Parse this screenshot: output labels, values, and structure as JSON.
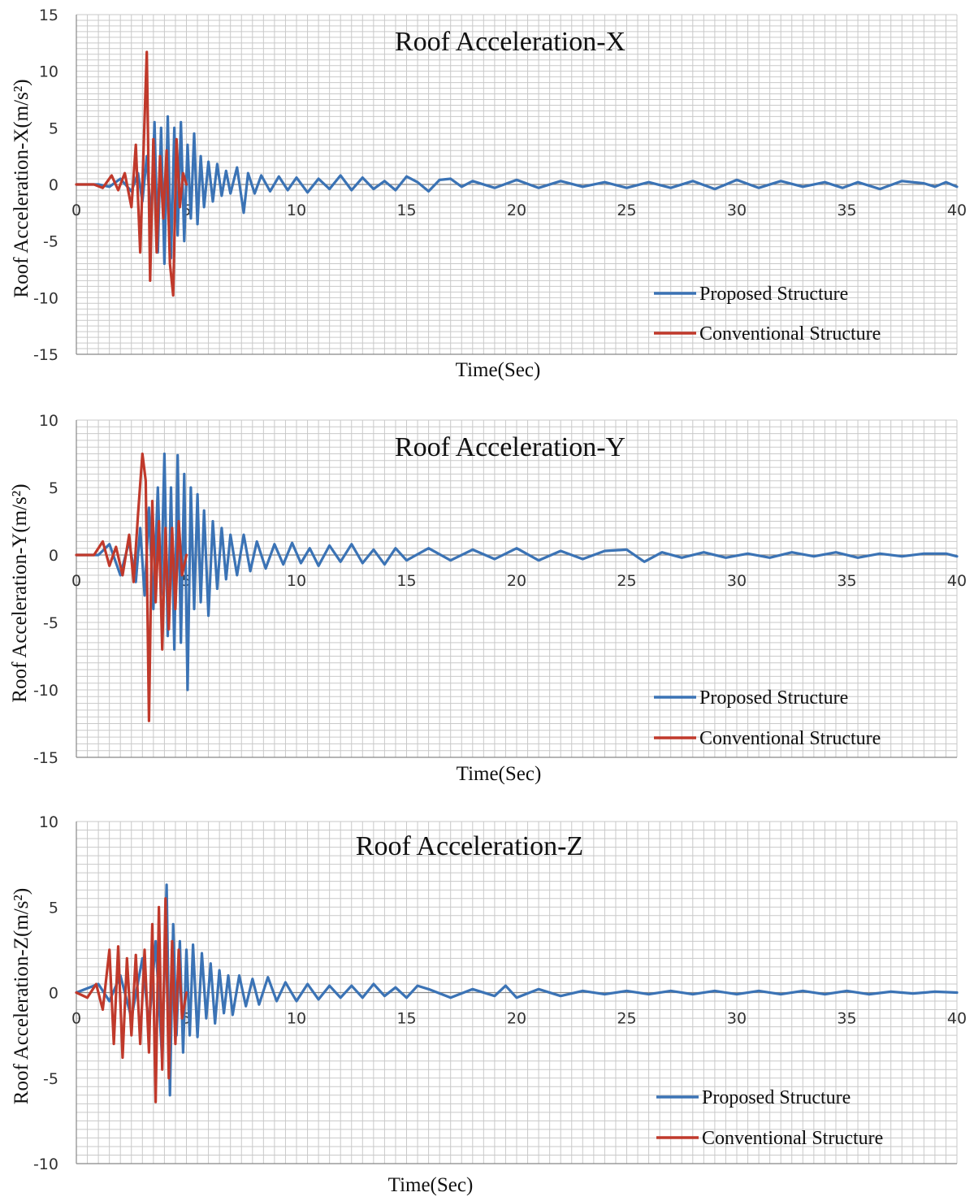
{
  "chart_data": [
    {
      "type": "line",
      "title": "Roof Acceleration-X",
      "xlabel": "Time(Sec)",
      "ylabel": "Roof Acceleration-X(m/s²)",
      "xlim": [
        0,
        40
      ],
      "ylim": [
        -15,
        15
      ],
      "x_ticks": [
        0,
        5,
        10,
        15,
        20,
        25,
        30,
        35,
        40
      ],
      "y_ticks": [
        15,
        10,
        5,
        0,
        -5,
        -10,
        -15
      ],
      "grid": true,
      "legend_position": "bottom-right",
      "series": [
        {
          "name": "Proposed Structure",
          "color": "#3b73b5",
          "x": [
            0,
            1,
            1.5,
            2,
            2.5,
            2.8,
            3.0,
            3.2,
            3.4,
            3.55,
            3.7,
            3.85,
            4.0,
            4.15,
            4.3,
            4.45,
            4.6,
            4.75,
            4.9,
            5.05,
            5.2,
            5.35,
            5.5,
            5.65,
            5.8,
            6.0,
            6.2,
            6.4,
            6.6,
            6.8,
            7.0,
            7.3,
            7.6,
            7.8,
            8.1,
            8.4,
            8.8,
            9.2,
            9.6,
            10.0,
            10.5,
            11.0,
            11.5,
            12.0,
            12.5,
            13.0,
            13.5,
            14.0,
            14.5,
            15.0,
            15.5,
            16.0,
            16.5,
            17.0,
            17.5,
            18.0,
            19.0,
            20.0,
            21.0,
            22.0,
            23.0,
            24.0,
            25.0,
            26.0,
            27.0,
            28.0,
            29.0,
            30.0,
            31.0,
            32.0,
            33.0,
            34.0,
            34.8,
            35.5,
            36.5,
            37.5,
            38.5,
            39.0,
            39.5,
            40.0
          ],
          "values": [
            0,
            0,
            -0.2,
            0.5,
            -0.6,
            1.0,
            -1.5,
            2.5,
            -3.5,
            5.5,
            -6.0,
            5.0,
            -7.0,
            6.0,
            -6.5,
            5.0,
            -4.5,
            5.5,
            -5.0,
            3.5,
            -3.0,
            4.5,
            -3.5,
            2.5,
            -2.0,
            2.0,
            -1.5,
            1.8,
            -1.0,
            1.2,
            -0.8,
            1.5,
            -2.5,
            1.0,
            -0.8,
            0.8,
            -0.6,
            0.7,
            -0.5,
            0.6,
            -0.7,
            0.5,
            -0.4,
            0.8,
            -0.5,
            0.6,
            -0.4,
            0.3,
            -0.5,
            0.7,
            0.2,
            -0.6,
            0.4,
            0.5,
            -0.2,
            0.3,
            -0.3,
            0.4,
            -0.3,
            0.3,
            -0.2,
            0.2,
            -0.3,
            0.2,
            -0.3,
            0.3,
            -0.4,
            0.4,
            -0.3,
            0.3,
            -0.2,
            0.2,
            -0.3,
            0.2,
            -0.4,
            0.3,
            0.1,
            -0.2,
            0.2,
            -0.2
          ]
        },
        {
          "name": "Conventional Structure",
          "color": "#c0392b",
          "x": [
            0,
            0.8,
            1.2,
            1.6,
            1.9,
            2.2,
            2.5,
            2.7,
            2.9,
            3.05,
            3.2,
            3.35,
            3.5,
            3.65,
            3.8,
            3.95,
            4.1,
            4.25,
            4.4,
            4.55,
            4.7,
            4.85,
            5.0
          ],
          "values": [
            0,
            0,
            -0.3,
            0.8,
            -0.5,
            1.0,
            -2.0,
            3.5,
            -6.0,
            3.0,
            11.7,
            -8.5,
            4.0,
            -6.0,
            2.5,
            -3.0,
            3.0,
            -7.0,
            -9.8,
            4.0,
            -2.0,
            1.0,
            0
          ]
        }
      ]
    },
    {
      "type": "line",
      "title": "Roof Acceleration-Y",
      "xlabel": "Time(Sec)",
      "ylabel": "Roof Acceleration-Y(m/s²)",
      "xlim": [
        0,
        40
      ],
      "ylim": [
        -15,
        10
      ],
      "x_ticks": [
        0,
        5,
        10,
        15,
        20,
        25,
        30,
        35,
        40
      ],
      "y_ticks": [
        10,
        5,
        0,
        -5,
        -10,
        -15
      ],
      "grid": true,
      "legend_position": "bottom-right",
      "series": [
        {
          "name": "Proposed Structure",
          "color": "#3b73b5",
          "x": [
            0,
            1,
            1.5,
            2,
            2.4,
            2.7,
            2.9,
            3.1,
            3.3,
            3.5,
            3.7,
            3.85,
            4.0,
            4.15,
            4.3,
            4.45,
            4.6,
            4.75,
            4.9,
            5.05,
            5.2,
            5.35,
            5.5,
            5.65,
            5.8,
            6.0,
            6.2,
            6.4,
            6.6,
            6.8,
            7.0,
            7.3,
            7.6,
            7.9,
            8.2,
            8.6,
            9.0,
            9.4,
            9.8,
            10.2,
            10.6,
            11.0,
            11.5,
            12.0,
            12.5,
            13.0,
            13.5,
            14.0,
            14.5,
            15.0,
            16.0,
            17.0,
            18.0,
            19.0,
            20.0,
            21.0,
            22.0,
            23.0,
            24.0,
            25.0,
            25.8,
            26.6,
            27.5,
            28.5,
            29.5,
            30.5,
            31.5,
            32.5,
            33.5,
            34.5,
            35.5,
            36.5,
            37.5,
            38.5,
            39.5,
            40.0
          ],
          "values": [
            0,
            0,
            0.8,
            -1.5,
            1.0,
            -2.0,
            2.0,
            -3.0,
            3.5,
            -4.0,
            5.0,
            -3.0,
            7.5,
            -6.0,
            5.0,
            -7.0,
            7.4,
            -6.5,
            6.0,
            -10.0,
            5.0,
            -4.0,
            4.5,
            -3.5,
            3.3,
            -4.5,
            2.5,
            -2.5,
            2.0,
            -1.8,
            1.5,
            -1.5,
            1.5,
            -1.2,
            1.0,
            -1.0,
            0.8,
            -0.7,
            0.9,
            -0.6,
            0.5,
            -0.8,
            0.7,
            -0.5,
            0.8,
            -0.6,
            0.4,
            -0.7,
            0.5,
            -0.4,
            0.5,
            -0.4,
            0.4,
            -0.3,
            0.5,
            -0.4,
            0.3,
            -0.3,
            0.3,
            0.4,
            -0.5,
            0.2,
            -0.2,
            0.2,
            -0.2,
            0.1,
            -0.2,
            0.2,
            -0.1,
            0.2,
            -0.2,
            0.1,
            -0.1,
            0.1,
            0.1,
            -0.1
          ]
        },
        {
          "name": "Conventional Structure",
          "color": "#c0392b",
          "x": [
            0,
            0.8,
            1.2,
            1.5,
            1.8,
            2.1,
            2.4,
            2.6,
            2.8,
            3.0,
            3.15,
            3.3,
            3.45,
            3.6,
            3.75,
            3.9,
            4.05,
            4.2,
            4.35,
            4.5,
            4.65,
            4.8,
            5.0
          ],
          "values": [
            0,
            0,
            1.0,
            -0.8,
            0.6,
            -1.5,
            1.5,
            -2.0,
            3.0,
            7.5,
            5.5,
            -12.3,
            4.0,
            -3.5,
            2.5,
            -7.0,
            2.0,
            -5.5,
            2.0,
            -4.0,
            2.5,
            -1.5,
            0
          ]
        }
      ]
    },
    {
      "type": "line",
      "title": "Roof Acceleration-Z",
      "xlabel": "Time(Sec)",
      "ylabel": "Roof Acceleration-Z(m/s²)",
      "xlim": [
        0,
        40
      ],
      "ylim": [
        -10,
        10
      ],
      "x_ticks": [
        0,
        5,
        10,
        15,
        20,
        25,
        30,
        35,
        40
      ],
      "y_ticks": [
        10,
        5,
        0,
        -5,
        -10
      ],
      "grid": true,
      "legend_position": "bottom-right",
      "series": [
        {
          "name": "Proposed Structure",
          "color": "#3b73b5",
          "x": [
            0,
            1,
            1.5,
            2,
            2.5,
            3.0,
            3.3,
            3.6,
            3.9,
            4.1,
            4.25,
            4.4,
            4.55,
            4.7,
            4.85,
            5.0,
            5.15,
            5.3,
            5.5,
            5.7,
            5.9,
            6.1,
            6.3,
            6.5,
            6.7,
            6.9,
            7.1,
            7.4,
            7.7,
            8.0,
            8.3,
            8.7,
            9.1,
            9.5,
            10.0,
            10.5,
            11.0,
            11.5,
            12.0,
            12.5,
            13.0,
            13.5,
            14.0,
            14.5,
            15.0,
            15.5,
            16.0,
            17.0,
            18.0,
            19.0,
            19.5,
            20.0,
            21.0,
            22.0,
            23.0,
            24.0,
            25.0,
            26.0,
            27.0,
            28.0,
            29.0,
            30.0,
            31.0,
            32.0,
            33.0,
            34.0,
            35.0,
            36.0,
            37.0,
            38.0,
            39.0,
            40.0
          ],
          "values": [
            0,
            0.5,
            -0.5,
            1.0,
            -1.5,
            2.0,
            -2.0,
            3.0,
            -4.0,
            6.3,
            -6.0,
            4.0,
            -2.5,
            3.0,
            -3.5,
            2.5,
            -2.5,
            2.8,
            -2.6,
            2.3,
            -1.5,
            1.7,
            -1.8,
            1.3,
            -1.2,
            1.0,
            -1.3,
            1.0,
            -0.8,
            0.8,
            -0.7,
            0.9,
            -0.5,
            0.6,
            -0.5,
            0.5,
            -0.4,
            0.4,
            -0.3,
            0.4,
            -0.3,
            0.5,
            -0.2,
            0.3,
            -0.3,
            0.4,
            0.2,
            -0.3,
            0.2,
            -0.2,
            0.4,
            -0.3,
            0.2,
            -0.2,
            0.1,
            -0.1,
            0.1,
            -0.1,
            0.1,
            -0.1,
            0.1,
            -0.1,
            0.1,
            -0.1,
            0.1,
            -0.1,
            0.1,
            -0.1,
            0.05,
            -0.05,
            0.05,
            0
          ]
        },
        {
          "name": "Conventional Structure",
          "color": "#c0392b",
          "x": [
            0,
            0.5,
            0.9,
            1.2,
            1.5,
            1.7,
            1.9,
            2.1,
            2.3,
            2.5,
            2.7,
            2.9,
            3.1,
            3.3,
            3.45,
            3.6,
            3.75,
            3.9,
            4.05,
            4.2,
            4.35,
            4.5,
            4.65,
            4.8,
            5.0
          ],
          "values": [
            0,
            -0.3,
            0.5,
            -1.0,
            2.5,
            -3.0,
            2.7,
            -3.8,
            2.0,
            -2.5,
            2.2,
            -3.0,
            2.5,
            -3.5,
            4.0,
            -6.4,
            5.0,
            -4.5,
            5.5,
            -5.0,
            3.0,
            -3.0,
            2.5,
            -1.5,
            0
          ]
        }
      ]
    }
  ]
}
